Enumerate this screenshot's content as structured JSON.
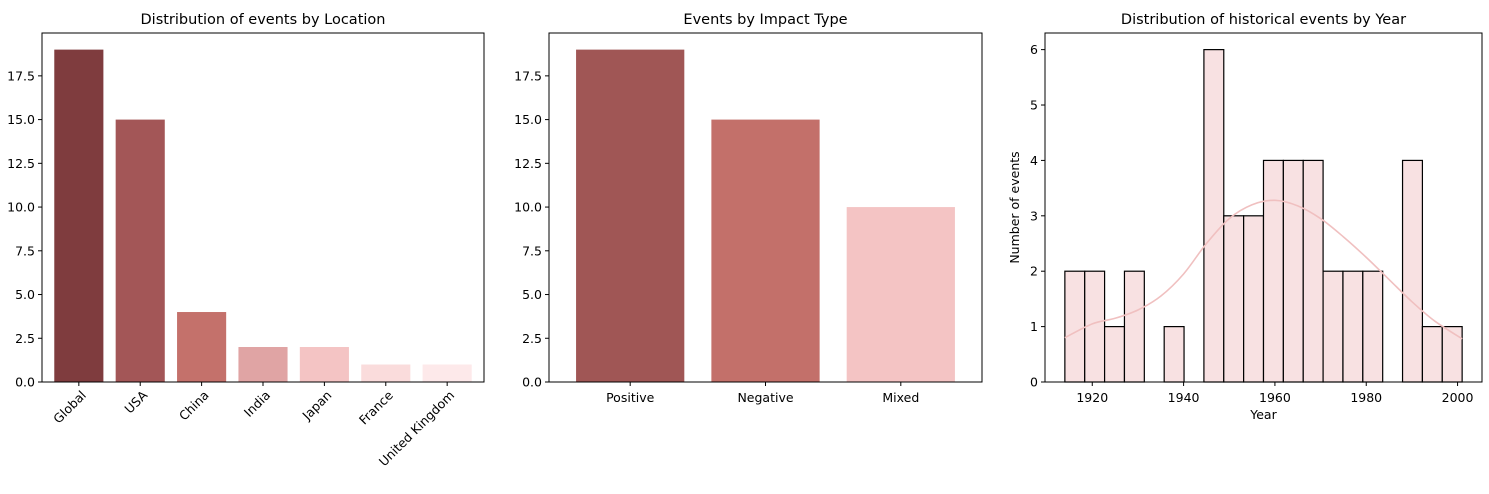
{
  "chart_data": [
    {
      "type": "bar",
      "title": "Distribution of events by Location",
      "xlabel": "",
      "ylabel": "",
      "categories": [
        "Global",
        "USA",
        "China",
        "India",
        "Japan",
        "France",
        "United Kingdom"
      ],
      "values": [
        19,
        15,
        4,
        2,
        2,
        1,
        1
      ],
      "colors": [
        "#7f3c3e",
        "#a35657",
        "#c4716b",
        "#e0a4a4",
        "#f4c4c4",
        "#fadcdc",
        "#fde9ea"
      ],
      "ylim": [
        0,
        19.95
      ],
      "yticks": [
        0,
        2.5,
        5,
        7.5,
        10,
        12.5,
        15,
        17.5
      ],
      "ytick_labels": [
        "0.0",
        "2.5",
        "5.0",
        "7.5",
        "10.0",
        "12.5",
        "15.0",
        "17.5"
      ],
      "xtick_rotation": 45,
      "grid": false
    },
    {
      "type": "bar",
      "title": "Events by Impact Type",
      "xlabel": "",
      "ylabel": "",
      "categories": [
        "Positive",
        "Negative",
        "Mixed"
      ],
      "values": [
        19,
        15,
        10
      ],
      "colors": [
        "#a05655",
        "#c3706a",
        "#f4c4c4"
      ],
      "ylim": [
        0,
        19.95
      ],
      "yticks": [
        0,
        2.5,
        5,
        7.5,
        10,
        12.5,
        15,
        17.5
      ],
      "ytick_labels": [
        "0.0",
        "2.5",
        "5.0",
        "7.5",
        "10.0",
        "12.5",
        "15.0",
        "17.5"
      ],
      "grid": false
    },
    {
      "type": "histogram",
      "title": "Distribution of historical events by Year",
      "xlabel": "Year",
      "ylabel": "Number of events",
      "bin_edges": [
        1914,
        1918.35,
        1922.7,
        1927.05,
        1931.4,
        1935.75,
        1940.1,
        1944.45,
        1948.8,
        1953.15,
        1957.5,
        1961.85,
        1966.2,
        1970.55,
        1974.9,
        1979.25,
        1983.6,
        1987.95,
        1992.3,
        1996.65,
        2001
      ],
      "counts": [
        2,
        2,
        1,
        2,
        0,
        1,
        0,
        6,
        3,
        3,
        4,
        4,
        4,
        2,
        2,
        2,
        0,
        4,
        1,
        1
      ],
      "kde": {
        "x": [
          1914,
          1920,
          1925,
          1930,
          1935,
          1940,
          1945,
          1950,
          1955,
          1960,
          1965,
          1970,
          1975,
          1980,
          1985,
          1990,
          1995,
          2001
        ],
        "y": [
          0.8,
          1.05,
          1.15,
          1.3,
          1.55,
          1.95,
          2.5,
          2.95,
          3.2,
          3.28,
          3.18,
          2.95,
          2.62,
          2.25,
          1.85,
          1.45,
          1.1,
          0.78
        ]
      },
      "bar_color": "#f8e1e2",
      "edge_color": "#000000",
      "kde_color": "#f0c0c0",
      "xlim": [
        1909.65,
        2005.35
      ],
      "ylim": [
        0,
        6.3
      ],
      "xticks": [
        1920,
        1940,
        1960,
        1980,
        2000
      ],
      "yticks": [
        0,
        1,
        2,
        3,
        4,
        5,
        6
      ],
      "grid": false
    }
  ]
}
